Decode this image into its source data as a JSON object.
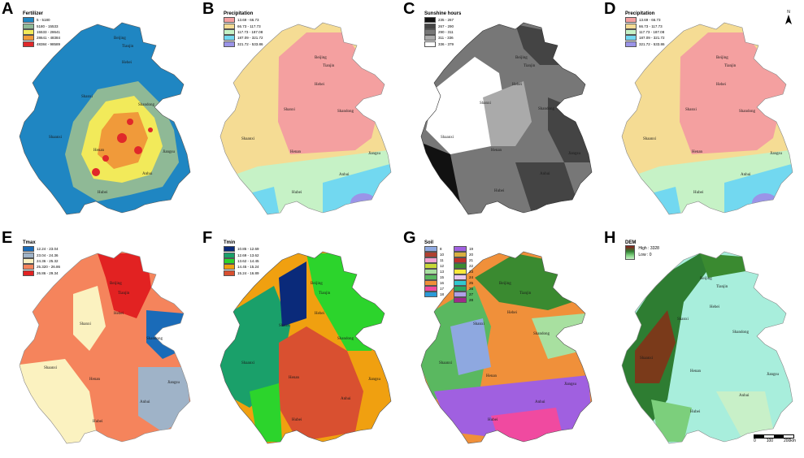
{
  "panels": [
    {
      "letter": "A",
      "legend_title": "Fertilizer",
      "legend": [
        {
          "label": "5 - 5180",
          "color": "#1f86c2"
        },
        {
          "label": "5180 - 15533",
          "color": "#8fb996"
        },
        {
          "label": "15533 - 28641",
          "color": "#f2ea5a"
        },
        {
          "label": "28641 - 48384",
          "color": "#f09a3a"
        },
        {
          "label": "48384 - 98589",
          "color": "#e0282a"
        }
      ]
    },
    {
      "letter": "B",
      "legend_title": "Precipitation",
      "legend": [
        {
          "label": "13.69 - 66.73",
          "color": "#f4a0a0"
        },
        {
          "label": "66.73 - 117.73",
          "color": "#f5dc94"
        },
        {
          "label": "117.73 - 187.08",
          "color": "#c6f2c6"
        },
        {
          "label": "187.09 - 321.72",
          "color": "#72d8f0"
        },
        {
          "label": "321.72 - 533.86",
          "color": "#9b94e8"
        }
      ]
    },
    {
      "letter": "C",
      "legend_title": "Sunshine hours",
      "legend": [
        {
          "label": "235 - 267",
          "color": "#111111"
        },
        {
          "label": "267 - 290",
          "color": "#444444"
        },
        {
          "label": "290 - 311",
          "color": "#777777"
        },
        {
          "label": "311 - 336",
          "color": "#aaaaaa"
        },
        {
          "label": "336 - 379",
          "color": "#ffffff"
        }
      ]
    },
    {
      "letter": "D",
      "legend_title": "Precipitation",
      "legend": [
        {
          "label": "13.69 - 66.73",
          "color": "#f4a0a0"
        },
        {
          "label": "66.73 - 117.73",
          "color": "#f5dc94"
        },
        {
          "label": "117.73 - 187.08",
          "color": "#c6f2c6"
        },
        {
          "label": "187.09 - 321.72",
          "color": "#72d8f0"
        },
        {
          "label": "321.72 - 533.86",
          "color": "#9b94e8"
        }
      ]
    },
    {
      "letter": "E",
      "legend_title": "Tmax",
      "legend": [
        {
          "label": "12.24 - 23.04",
          "color": "#1a6bb8"
        },
        {
          "label": "23.04 - 24.36",
          "color": "#9fb3c8"
        },
        {
          "label": "24.36 - 25.32",
          "color": "#fbf2c0"
        },
        {
          "label": "25.320 - 26.86",
          "color": "#f5845c"
        },
        {
          "label": "26.86 - 29.34",
          "color": "#e22222"
        }
      ]
    },
    {
      "letter": "F",
      "legend_title": "Tmin",
      "legend": [
        {
          "label": "10.85 - 12.69",
          "color": "#0a2a7a"
        },
        {
          "label": "12.69 - 13.62",
          "color": "#1aa06a"
        },
        {
          "label": "13.62 - 14.45",
          "color": "#2cd42c"
        },
        {
          "label": "14.45 - 15.24",
          "color": "#f0a010"
        },
        {
          "label": "15.24 - 16.89",
          "color": "#d95030"
        }
      ]
    },
    {
      "letter": "G",
      "legend_title": "Soil",
      "legend": [
        {
          "label": "8",
          "color": "#8ea8e0"
        },
        {
          "label": "10",
          "color": "#b04030"
        },
        {
          "label": "11",
          "color": "#f4a0d0"
        },
        {
          "label": "12",
          "color": "#c8d838"
        },
        {
          "label": "13",
          "color": "#a8e0a0"
        },
        {
          "label": "15",
          "color": "#5ab860"
        },
        {
          "label": "16",
          "color": "#f0903a"
        },
        {
          "label": "17",
          "color": "#f04aa0"
        },
        {
          "label": "18",
          "color": "#2a9ad8"
        },
        {
          "label": "19",
          "color": "#a060e0"
        },
        {
          "label": "20",
          "color": "#d8b040"
        },
        {
          "label": "21",
          "color": "#c0302a"
        },
        {
          "label": "22",
          "color": "#3a8a30"
        },
        {
          "label": "23",
          "color": "#f8e83a"
        },
        {
          "label": "24",
          "color": "#e8c8f0"
        },
        {
          "label": "25",
          "color": "#30c8d0"
        },
        {
          "label": "26",
          "color": "#2aa860"
        },
        {
          "label": "27",
          "color": "#b0a0e8"
        },
        {
          "label": "28",
          "color": "#a02a8a"
        }
      ]
    },
    {
      "letter": "H",
      "legend_title": "DEM",
      "dem_high": "High : 3328",
      "dem_low": "Low : 0"
    }
  ],
  "map_labels": {
    "beijing": "Beijing",
    "tianjin": "Tianjin",
    "hebei": "Hebei",
    "shanxi": "Shanxi",
    "shandong": "Shandong",
    "shaanxi": "Shaanxi",
    "henan": "Henan",
    "jiangsu": "Jiangsu",
    "anhui": "Anhui",
    "hubei": "Hubei"
  },
  "north_label": "N",
  "scale": {
    "zero": "0",
    "mid": "100",
    "end": "200km"
  }
}
